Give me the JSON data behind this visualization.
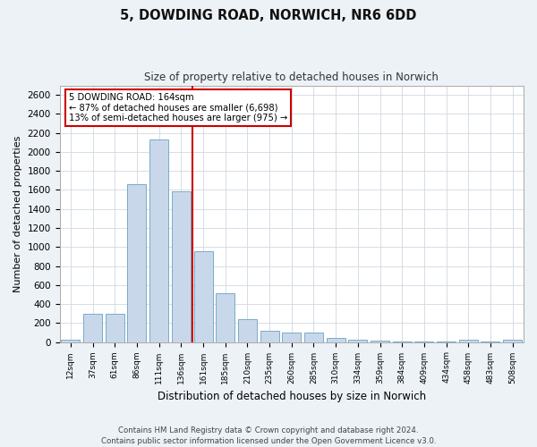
{
  "title_line1": "5, DOWDING ROAD, NORWICH, NR6 6DD",
  "title_line2": "Size of property relative to detached houses in Norwich",
  "xlabel": "Distribution of detached houses by size in Norwich",
  "ylabel": "Number of detached properties",
  "bar_color": "#c8d8ea",
  "bar_edge_color": "#7aaac8",
  "categories": [
    "12sqm",
    "37sqm",
    "61sqm",
    "86sqm",
    "111sqm",
    "136sqm",
    "161sqm",
    "185sqm",
    "210sqm",
    "235sqm",
    "260sqm",
    "285sqm",
    "310sqm",
    "334sqm",
    "359sqm",
    "384sqm",
    "409sqm",
    "434sqm",
    "458sqm",
    "483sqm",
    "508sqm"
  ],
  "values": [
    20,
    295,
    295,
    1660,
    2130,
    1590,
    960,
    510,
    245,
    120,
    100,
    100,
    45,
    20,
    15,
    5,
    5,
    5,
    20,
    5,
    20
  ],
  "vline_index": 6,
  "vline_label": "5 DOWDING ROAD: 164sqm",
  "annotation_line2": "← 87% of detached houses are smaller (6,698)",
  "annotation_line3": "13% of semi-detached houses are larger (975) →",
  "ylim": [
    0,
    2700
  ],
  "yticks": [
    0,
    200,
    400,
    600,
    800,
    1000,
    1200,
    1400,
    1600,
    1800,
    2000,
    2200,
    2400,
    2600
  ],
  "footnote1": "Contains HM Land Registry data © Crown copyright and database right 2024.",
  "footnote2": "Contains public sector information licensed under the Open Government Licence v3.0.",
  "background_color": "#edf2f7",
  "plot_background": "#ffffff",
  "vline_color": "#cc0000",
  "box_edge_color": "#cc0000",
  "grid_color": "#d0d8e0"
}
